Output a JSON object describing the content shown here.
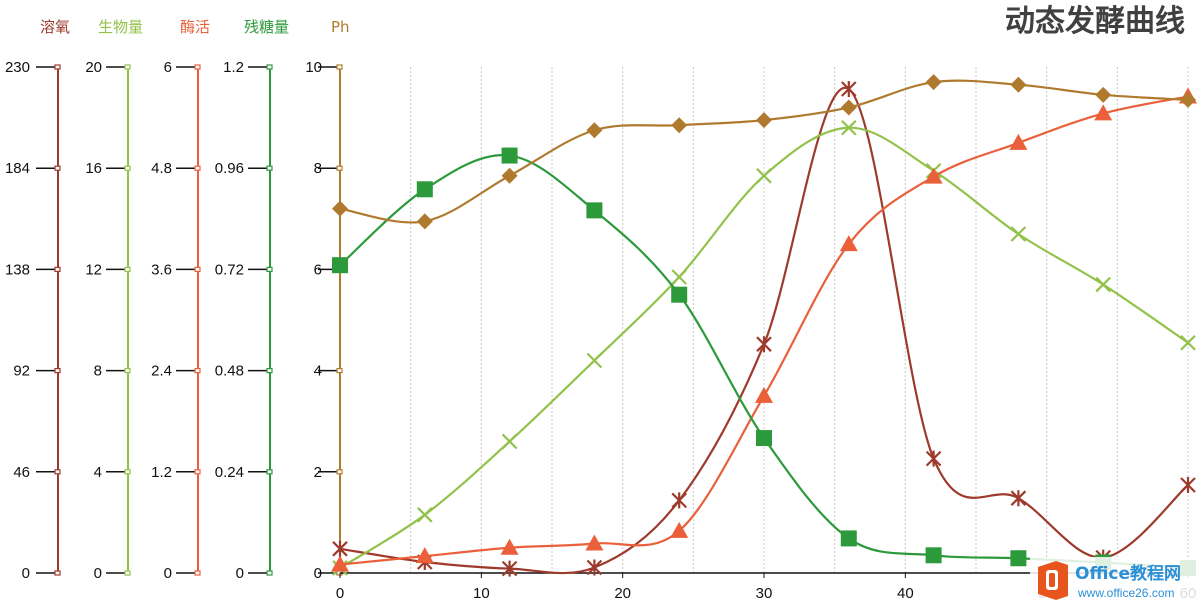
{
  "chart_data": {
    "type": "line",
    "title": "动态发酵曲线",
    "x": [
      0,
      6,
      12,
      18,
      24,
      30,
      36,
      42,
      48,
      54,
      60
    ],
    "xlim": [
      0,
      60
    ],
    "x_ticks": [
      "0",
      "10",
      "20",
      "30",
      "40",
      "50",
      "60"
    ],
    "grid": "vertical dotted",
    "legend": "top-left",
    "axes": [
      {
        "id": "do",
        "label": "溶氧",
        "color": "#9e3a2c",
        "ylim": [
          0,
          230
        ],
        "ticks": [
          "0",
          "46",
          "92",
          "138",
          "184",
          "230"
        ]
      },
      {
        "id": "bio",
        "label": "生物量",
        "color": "#92c24a",
        "ylim": [
          0,
          20
        ],
        "ticks": [
          "0",
          "4",
          "8",
          "12",
          "16",
          "20"
        ]
      },
      {
        "id": "enz",
        "label": "酶活",
        "color": "#e9603a",
        "ylim": [
          0,
          6
        ],
        "ticks": [
          "0",
          "1.2",
          "2.4",
          "3.6",
          "4.8",
          "6"
        ]
      },
      {
        "id": "sugar",
        "label": "残糖量",
        "color": "#2c9a3a",
        "ylim": [
          0,
          1.2
        ],
        "ticks": [
          "0",
          "0.24",
          "0.48",
          "0.72",
          "0.96",
          "1.2"
        ]
      },
      {
        "id": "ph",
        "label": "Ph",
        "color": "#b07a2e",
        "ylim": [
          0,
          10
        ],
        "ticks": [
          "0",
          "2",
          "4",
          "6",
          "8",
          "10"
        ]
      }
    ],
    "series": [
      {
        "name": "溶氧",
        "axis": "do",
        "marker": "asterisk",
        "values": [
          11,
          5,
          2,
          2.5,
          33,
          104,
          220,
          52,
          34,
          7,
          40
        ]
      },
      {
        "name": "生物量",
        "axis": "bio",
        "marker": "x",
        "values": [
          0.2,
          2.3,
          5.2,
          8.4,
          11.7,
          15.7,
          17.6,
          15.9,
          13.4,
          11.4,
          9.1
        ]
      },
      {
        "name": "酶活",
        "axis": "enz",
        "marker": "triangle",
        "values": [
          0.1,
          0.2,
          0.3,
          0.35,
          0.5,
          2.1,
          3.9,
          4.7,
          5.1,
          5.45,
          5.65
        ]
      },
      {
        "name": "残糖量",
        "axis": "sugar",
        "marker": "square",
        "values": [
          0.73,
          0.91,
          0.99,
          0.86,
          0.66,
          0.32,
          0.082,
          0.042,
          0.035,
          0.025,
          0.012
        ]
      },
      {
        "name": "Ph",
        "axis": "ph",
        "marker": "diamond",
        "values": [
          7.2,
          6.95,
          7.85,
          8.75,
          8.85,
          8.95,
          9.2,
          9.7,
          9.65,
          9.45,
          9.35
        ]
      }
    ]
  },
  "watermark": {
    "brand": "Office教程网",
    "url": "www.office26.com",
    "brand_color": "#2b8fd6",
    "logo_color": "#e8541e"
  }
}
